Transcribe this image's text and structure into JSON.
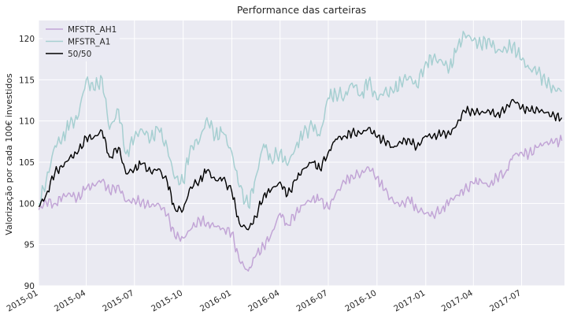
{
  "chart_data": {
    "type": "line",
    "title": "Performance das carteiras",
    "xlabel": "",
    "ylabel": "Valorização por cada 100€ investidos",
    "ylim": [
      90,
      122.2
    ],
    "xlim": [
      "2015-01-01",
      "2017-09-20"
    ],
    "yticks": [
      90,
      95,
      100,
      105,
      110,
      115,
      120
    ],
    "xticks": [
      "2015-01",
      "2015-04",
      "2015-07",
      "2015-10",
      "2016-01",
      "2016-04",
      "2016-07",
      "2016-10",
      "2017-01",
      "2017-04",
      "2017-07"
    ],
    "grid": true,
    "legend_position": "top-left",
    "x": [
      "2015-01-01",
      "2015-01-15",
      "2015-02-01",
      "2015-02-15",
      "2015-03-01",
      "2015-03-15",
      "2015-04-01",
      "2015-04-15",
      "2015-05-01",
      "2015-05-15",
      "2015-06-01",
      "2015-06-15",
      "2015-07-01",
      "2015-07-15",
      "2015-08-01",
      "2015-08-15",
      "2015-09-01",
      "2015-09-15",
      "2015-10-01",
      "2015-10-15",
      "2015-11-01",
      "2015-11-15",
      "2015-12-01",
      "2015-12-15",
      "2016-01-01",
      "2016-01-15",
      "2016-02-01",
      "2016-02-15",
      "2016-03-01",
      "2016-03-15",
      "2016-04-01",
      "2016-04-15",
      "2016-05-01",
      "2016-05-15",
      "2016-06-01",
      "2016-06-15",
      "2016-07-01",
      "2016-07-15",
      "2016-08-01",
      "2016-08-15",
      "2016-09-01",
      "2016-09-15",
      "2016-10-01",
      "2016-10-15",
      "2016-11-01",
      "2016-11-15",
      "2016-12-01",
      "2016-12-15",
      "2017-01-01",
      "2017-01-15",
      "2017-02-01",
      "2017-02-15",
      "2017-03-01",
      "2017-03-15",
      "2017-04-01",
      "2017-04-15",
      "2017-05-01",
      "2017-05-15",
      "2017-06-01",
      "2017-06-15",
      "2017-07-01",
      "2017-07-15",
      "2017-08-01",
      "2017-08-15",
      "2017-09-01",
      "2017-09-15"
    ],
    "series": [
      {
        "name": "MFSTR_AH1",
        "color": "#c2a5d6",
        "values": [
          99.2,
          100.2,
          100.0,
          100.8,
          101.2,
          100.6,
          101.8,
          102.2,
          102.8,
          101.4,
          102.2,
          100.2,
          100.4,
          100.2,
          99.6,
          100.0,
          98.6,
          96.0,
          95.8,
          96.8,
          98.0,
          97.6,
          97.2,
          97.0,
          96.4,
          93.0,
          91.8,
          93.6,
          94.8,
          96.2,
          98.8,
          97.4,
          98.8,
          99.8,
          100.6,
          100.4,
          99.4,
          101.2,
          102.6,
          103.4,
          103.6,
          104.4,
          103.2,
          101.6,
          100.2,
          99.8,
          100.4,
          99.4,
          98.8,
          98.6,
          99.4,
          100.2,
          101.0,
          101.6,
          102.4,
          102.8,
          102.0,
          103.2,
          103.8,
          105.8,
          106.2,
          106.0,
          106.8,
          107.4,
          107.4,
          107.6
        ]
      },
      {
        "name": "MFSTR_A1",
        "color": "#a6cfd1",
        "values": [
          100.0,
          102.6,
          107.0,
          108.0,
          109.6,
          110.2,
          115.0,
          113.8,
          115.2,
          109.0,
          111.4,
          106.0,
          108.0,
          109.0,
          107.8,
          109.0,
          106.8,
          103.0,
          102.6,
          107.0,
          107.6,
          110.4,
          108.2,
          108.6,
          106.2,
          102.0,
          99.6,
          103.2,
          107.2,
          105.4,
          106.2,
          104.6,
          107.0,
          108.4,
          109.4,
          108.2,
          112.8,
          113.4,
          113.0,
          114.6,
          113.2,
          114.8,
          112.6,
          113.6,
          113.4,
          114.8,
          115.4,
          114.2,
          117.2,
          117.6,
          117.2,
          116.4,
          118.6,
          120.6,
          119.8,
          119.2,
          120.0,
          118.4,
          118.8,
          119.2,
          117.4,
          116.4,
          116.0,
          114.6,
          114.0,
          113.6
        ]
      },
      {
        "name": "50/50",
        "color": "#000000",
        "values": [
          99.6,
          101.0,
          103.8,
          104.4,
          105.6,
          106.0,
          108.0,
          108.0,
          108.8,
          105.6,
          106.8,
          103.6,
          104.2,
          104.8,
          103.8,
          104.2,
          102.6,
          99.4,
          99.2,
          102.0,
          102.8,
          104.0,
          102.8,
          103.0,
          101.4,
          97.6,
          96.8,
          98.4,
          101.0,
          101.6,
          102.6,
          101.0,
          102.8,
          104.2,
          105.0,
          104.2,
          106.2,
          107.8,
          108.2,
          108.6,
          108.4,
          109.2,
          108.0,
          107.6,
          106.8,
          107.4,
          107.8,
          106.8,
          108.2,
          108.2,
          108.4,
          108.4,
          109.6,
          111.2,
          111.2,
          111.0,
          111.2,
          110.8,
          111.4,
          112.6,
          111.6,
          111.2,
          111.4,
          111.0,
          110.6,
          110.4
        ]
      }
    ]
  }
}
